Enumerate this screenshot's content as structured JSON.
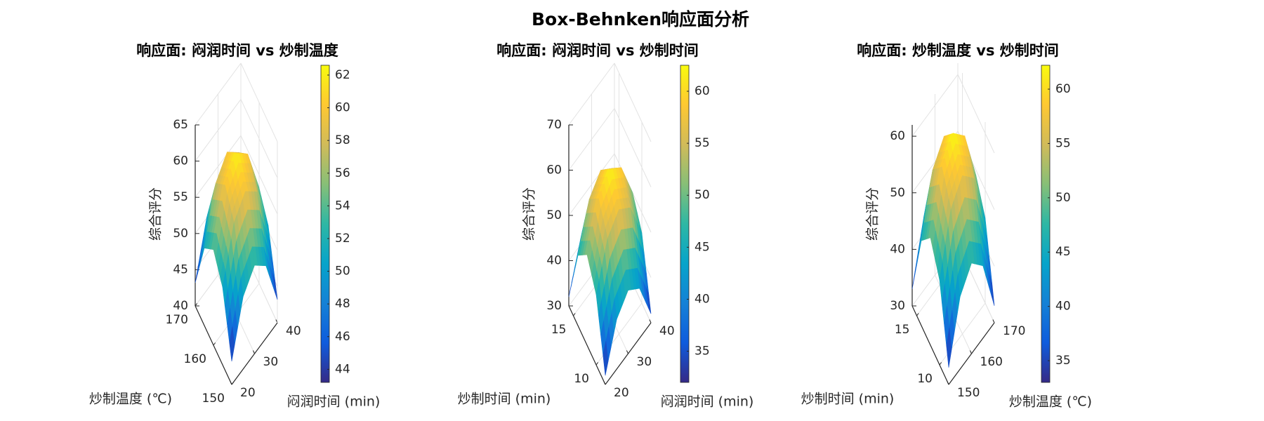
{
  "title": "Box-Behnken响应面分析",
  "chart_data": [
    {
      "type": "surface",
      "title": "响应面: 闷润时间 vs 炒制温度",
      "xlabel": "闷润时间 (min)",
      "ylabel": "炒制温度 (℃)",
      "zlabel": "综合评分",
      "x": [
        20,
        25,
        30,
        35,
        40
      ],
      "y": [
        150,
        155,
        160,
        165,
        170
      ],
      "z": [
        [
          43.2,
          50.0,
          52.2,
          50.0,
          43.2
        ],
        [
          50.7,
          57.5,
          59.7,
          57.5,
          50.7
        ],
        [
          53.2,
          60.0,
          62.2,
          60.0,
          53.2
        ],
        [
          50.7,
          57.5,
          59.7,
          57.5,
          50.7
        ],
        [
          43.2,
          50.0,
          52.2,
          50.0,
          43.2
        ]
      ],
      "xlim": [
        20,
        40
      ],
      "xticks": [
        20,
        30,
        40
      ],
      "ylim": [
        150,
        170
      ],
      "yticks": [
        150,
        160,
        170
      ],
      "zlim": [
        40,
        65
      ],
      "zticks": [
        40,
        45,
        50,
        55,
        60,
        65
      ],
      "clim": [
        43.2,
        62.6
      ],
      "cticks": [
        44,
        46,
        48,
        50,
        52,
        54,
        56,
        58,
        60,
        62
      ],
      "colormap": "parula",
      "grid": true
    },
    {
      "type": "surface",
      "title": "响应面: 闷润时间 vs 炒制时间",
      "xlabel": "闷润时间 (min)",
      "ylabel": "炒制时间 (min)",
      "zlabel": "综合评分",
      "x": [
        20,
        25,
        30,
        35,
        40
      ],
      "y": [
        8,
        10,
        12,
        14,
        16
      ],
      "z": [
        [
          32,
          41,
          44,
          41,
          32
        ],
        [
          45.5,
          54.5,
          57.5,
          54.5,
          45.5
        ],
        [
          50,
          59,
          62,
          59,
          50
        ],
        [
          45.5,
          54.5,
          57.5,
          54.5,
          45.5
        ],
        [
          32,
          41,
          44,
          41,
          32
        ]
      ],
      "xlim": [
        20,
        40
      ],
      "xticks": [
        20,
        30,
        40
      ],
      "ylim": [
        8,
        16
      ],
      "yticks": [
        10,
        15
      ],
      "zlim": [
        30,
        70
      ],
      "zticks": [
        30,
        40,
        50,
        60,
        70
      ],
      "clim": [
        32,
        62.5
      ],
      "cticks": [
        35,
        40,
        45,
        50,
        55,
        60
      ],
      "colormap": "parula",
      "grid": true
    },
    {
      "type": "surface",
      "title": "响应面: 炒制温度 vs 炒制时间",
      "xlabel": "炒制温度 (℃)",
      "ylabel": "炒制时间 (min)",
      "zlabel": "综合评分",
      "x": [
        150,
        155,
        160,
        165,
        170
      ],
      "y": [
        8,
        10,
        12,
        14,
        16
      ],
      "z": [
        [
          33,
          42.8,
          46,
          42.8,
          33
        ],
        [
          45,
          54.8,
          58,
          54.8,
          45
        ],
        [
          49,
          58.8,
          62,
          58.8,
          49
        ],
        [
          45,
          54.8,
          58,
          54.8,
          45
        ],
        [
          33,
          42.8,
          46,
          42.8,
          33
        ]
      ],
      "xlim": [
        150,
        170
      ],
      "xticks": [
        150,
        160,
        170
      ],
      "ylim": [
        8,
        16
      ],
      "yticks": [
        10,
        15
      ],
      "zlim": [
        30,
        62
      ],
      "zticks": [
        30,
        40,
        50,
        60
      ],
      "clim": [
        33,
        62.2
      ],
      "cticks": [
        35,
        40,
        45,
        50,
        55,
        60
      ],
      "colormap": "parula",
      "grid": true
    }
  ]
}
